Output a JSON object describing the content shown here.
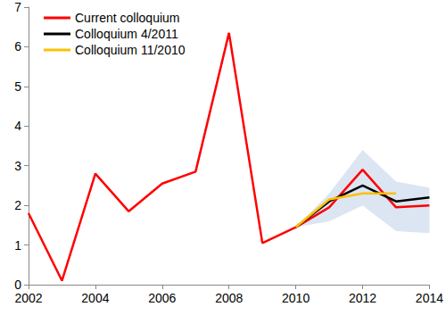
{
  "chart_data": {
    "type": "line",
    "x_ticks_note_free": null,
    "xlim": [
      2002,
      2014
    ],
    "xticks": [
      2002,
      2004,
      2006,
      2008,
      2010,
      2012,
      2014
    ],
    "ylim": [
      0,
      7
    ],
    "yticks": [
      0,
      1,
      2,
      3,
      4,
      5,
      6,
      7
    ],
    "grid": false,
    "legend": "upper left",
    "series": [
      {
        "name": "Current colloquium",
        "color": "#ff0000",
        "x": [
          2002,
          2003,
          2004,
          2005,
          2006,
          2007,
          2008,
          2009,
          2010,
          2011,
          2012,
          2013,
          2014
        ],
        "values": [
          1.8,
          0.1,
          2.8,
          1.85,
          2.55,
          2.85,
          6.35,
          1.05,
          1.45,
          1.95,
          2.9,
          1.95,
          2.0
        ]
      },
      {
        "name": "Colloquium 4/2011",
        "color": "#000000",
        "x": [
          2010,
          2011,
          2012,
          2013,
          2014
        ],
        "values": [
          1.45,
          2.1,
          2.5,
          2.1,
          2.2
        ]
      },
      {
        "name": "Colloquium 11/2010",
        "color": "#ffc000",
        "x": [
          2010,
          2011,
          2012,
          2013
        ],
        "values": [
          1.45,
          2.15,
          2.3,
          2.3
        ]
      }
    ],
    "band": {
      "color": "#dce6f2",
      "x": [
        2010,
        2011,
        2012,
        2013,
        2014
      ],
      "lower": [
        1.45,
        1.6,
        2.0,
        1.35,
        1.3
      ],
      "upper": [
        1.45,
        2.3,
        3.4,
        2.6,
        2.45
      ]
    }
  }
}
